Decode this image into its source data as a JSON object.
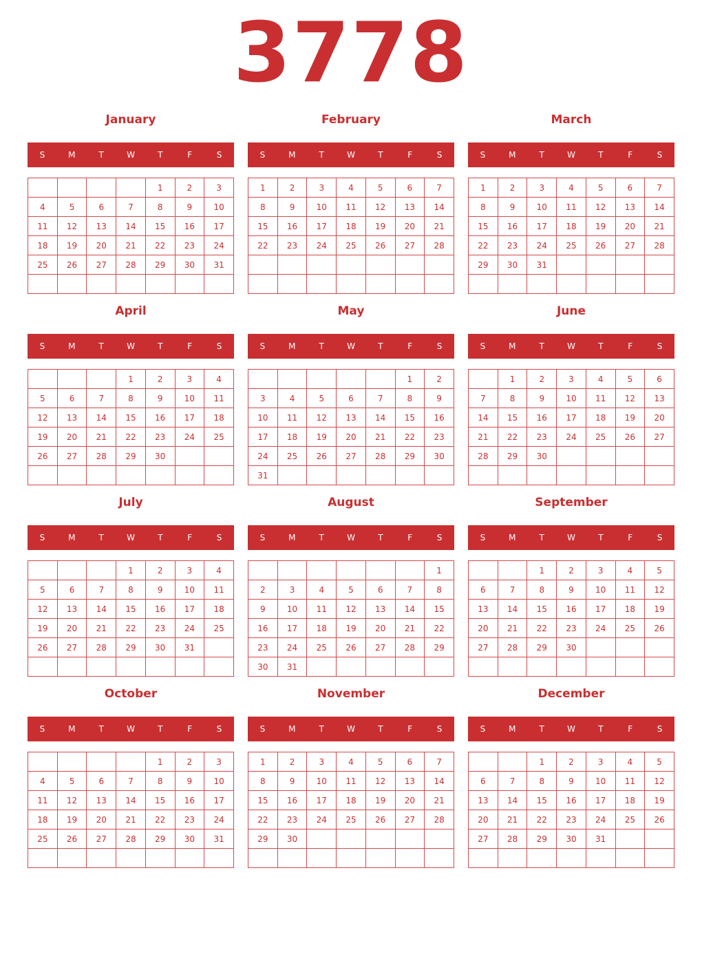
{
  "year": "3778",
  "accent_color": "#c92f31",
  "weekdays": [
    "S",
    "M",
    "T",
    "W",
    "T",
    "F",
    "S"
  ],
  "months": [
    {
      "name": "January",
      "weeks": [
        [
          null,
          null,
          null,
          null,
          1,
          2,
          3
        ],
        [
          4,
          5,
          6,
          7,
          8,
          9,
          10
        ],
        [
          11,
          12,
          13,
          14,
          15,
          16,
          17
        ],
        [
          18,
          19,
          20,
          21,
          22,
          23,
          24
        ],
        [
          25,
          26,
          27,
          28,
          29,
          30,
          31
        ],
        [
          null,
          null,
          null,
          null,
          null,
          null,
          null
        ]
      ]
    },
    {
      "name": "February",
      "weeks": [
        [
          1,
          2,
          3,
          4,
          5,
          6,
          7
        ],
        [
          8,
          9,
          10,
          11,
          12,
          13,
          14
        ],
        [
          15,
          16,
          17,
          18,
          19,
          20,
          21
        ],
        [
          22,
          23,
          24,
          25,
          26,
          27,
          28
        ],
        [
          null,
          null,
          null,
          null,
          null,
          null,
          null
        ],
        [
          null,
          null,
          null,
          null,
          null,
          null,
          null
        ]
      ]
    },
    {
      "name": "March",
      "weeks": [
        [
          1,
          2,
          3,
          4,
          5,
          6,
          7
        ],
        [
          8,
          9,
          10,
          11,
          12,
          13,
          14
        ],
        [
          15,
          16,
          17,
          18,
          19,
          20,
          21
        ],
        [
          22,
          23,
          24,
          25,
          26,
          27,
          28
        ],
        [
          29,
          30,
          31,
          null,
          null,
          null,
          null
        ],
        [
          null,
          null,
          null,
          null,
          null,
          null,
          null
        ]
      ]
    },
    {
      "name": "April",
      "weeks": [
        [
          null,
          null,
          null,
          1,
          2,
          3,
          4
        ],
        [
          5,
          6,
          7,
          8,
          9,
          10,
          11
        ],
        [
          12,
          13,
          14,
          15,
          16,
          17,
          18
        ],
        [
          19,
          20,
          21,
          22,
          23,
          24,
          25
        ],
        [
          26,
          27,
          28,
          29,
          30,
          null,
          null
        ],
        [
          null,
          null,
          null,
          null,
          null,
          null,
          null
        ]
      ]
    },
    {
      "name": "May",
      "weeks": [
        [
          null,
          null,
          null,
          null,
          null,
          1,
          2
        ],
        [
          3,
          4,
          5,
          6,
          7,
          8,
          9
        ],
        [
          10,
          11,
          12,
          13,
          14,
          15,
          16
        ],
        [
          17,
          18,
          19,
          20,
          21,
          22,
          23
        ],
        [
          24,
          25,
          26,
          27,
          28,
          29,
          30
        ],
        [
          31,
          null,
          null,
          null,
          null,
          null,
          null
        ]
      ]
    },
    {
      "name": "June",
      "weeks": [
        [
          null,
          1,
          2,
          3,
          4,
          5,
          6
        ],
        [
          7,
          8,
          9,
          10,
          11,
          12,
          13
        ],
        [
          14,
          15,
          16,
          17,
          18,
          19,
          20
        ],
        [
          21,
          22,
          23,
          24,
          25,
          26,
          27
        ],
        [
          28,
          29,
          30,
          null,
          null,
          null,
          null
        ],
        [
          null,
          null,
          null,
          null,
          null,
          null,
          null
        ]
      ]
    },
    {
      "name": "July",
      "weeks": [
        [
          null,
          null,
          null,
          1,
          2,
          3,
          4
        ],
        [
          5,
          6,
          7,
          8,
          9,
          10,
          11
        ],
        [
          12,
          13,
          14,
          15,
          16,
          17,
          18
        ],
        [
          19,
          20,
          21,
          22,
          23,
          24,
          25
        ],
        [
          26,
          27,
          28,
          29,
          30,
          31,
          null
        ],
        [
          null,
          null,
          null,
          null,
          null,
          null,
          null
        ]
      ]
    },
    {
      "name": "August",
      "weeks": [
        [
          null,
          null,
          null,
          null,
          null,
          null,
          1
        ],
        [
          2,
          3,
          4,
          5,
          6,
          7,
          8
        ],
        [
          9,
          10,
          11,
          12,
          13,
          14,
          15
        ],
        [
          16,
          17,
          18,
          19,
          20,
          21,
          22
        ],
        [
          23,
          24,
          25,
          26,
          27,
          28,
          29
        ],
        [
          30,
          31,
          null,
          null,
          null,
          null,
          null
        ]
      ]
    },
    {
      "name": "September",
      "weeks": [
        [
          null,
          null,
          1,
          2,
          3,
          4,
          5
        ],
        [
          6,
          7,
          8,
          9,
          10,
          11,
          12
        ],
        [
          13,
          14,
          15,
          16,
          17,
          18,
          19
        ],
        [
          20,
          21,
          22,
          23,
          24,
          25,
          26
        ],
        [
          27,
          28,
          29,
          30,
          null,
          null,
          null
        ],
        [
          null,
          null,
          null,
          null,
          null,
          null,
          null
        ]
      ]
    },
    {
      "name": "October",
      "weeks": [
        [
          null,
          null,
          null,
          null,
          1,
          2,
          3
        ],
        [
          4,
          5,
          6,
          7,
          8,
          9,
          10
        ],
        [
          11,
          12,
          13,
          14,
          15,
          16,
          17
        ],
        [
          18,
          19,
          20,
          21,
          22,
          23,
          24
        ],
        [
          25,
          26,
          27,
          28,
          29,
          30,
          31
        ],
        [
          null,
          null,
          null,
          null,
          null,
          null,
          null
        ]
      ]
    },
    {
      "name": "November",
      "weeks": [
        [
          1,
          2,
          3,
          4,
          5,
          6,
          7
        ],
        [
          8,
          9,
          10,
          11,
          12,
          13,
          14
        ],
        [
          15,
          16,
          17,
          18,
          19,
          20,
          21
        ],
        [
          22,
          23,
          24,
          25,
          26,
          27,
          28
        ],
        [
          29,
          30,
          null,
          null,
          null,
          null,
          null
        ],
        [
          null,
          null,
          null,
          null,
          null,
          null,
          null
        ]
      ]
    },
    {
      "name": "December",
      "weeks": [
        [
          null,
          null,
          1,
          2,
          3,
          4,
          5
        ],
        [
          6,
          7,
          8,
          9,
          10,
          11,
          12
        ],
        [
          13,
          14,
          15,
          16,
          17,
          18,
          19
        ],
        [
          20,
          21,
          22,
          23,
          24,
          25,
          26
        ],
        [
          27,
          28,
          29,
          30,
          31,
          null,
          null
        ],
        [
          null,
          null,
          null,
          null,
          null,
          null,
          null
        ]
      ]
    }
  ]
}
